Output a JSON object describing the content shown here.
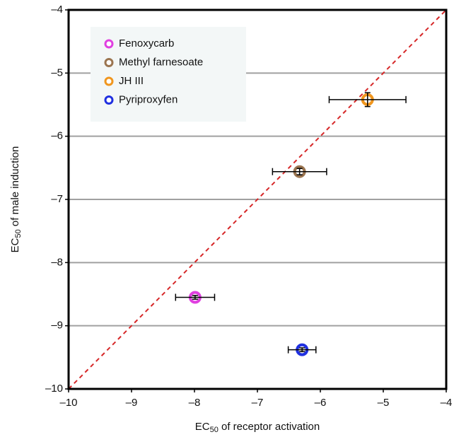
{
  "chart_data": {
    "type": "scatter",
    "xlabel": {
      "main": "EC",
      "sub": "50",
      "rest": " of receptor activation"
    },
    "ylabel": {
      "main": "EC",
      "sub": "50",
      "rest": " of male induction"
    },
    "xlim": [
      -10,
      -4
    ],
    "ylim": [
      -10,
      -4
    ],
    "xticks": [
      {
        "value": -10,
        "label": "–10"
      },
      {
        "value": -9,
        "label": "–9"
      },
      {
        "value": -8,
        "label": "–8"
      },
      {
        "value": -7,
        "label": "–7"
      },
      {
        "value": -6,
        "label": "–6"
      },
      {
        "value": -5,
        "label": "–5"
      },
      {
        "value": -4,
        "label": "–4"
      }
    ],
    "yticks": [
      {
        "value": -10,
        "label": "–10"
      },
      {
        "value": -9,
        "label": "–9"
      },
      {
        "value": -8,
        "label": "–8"
      },
      {
        "value": -7,
        "label": "–7"
      },
      {
        "value": -6,
        "label": "–6"
      },
      {
        "value": -5,
        "label": "–5"
      },
      {
        "value": -4,
        "label": "–4"
      }
    ],
    "grid": true,
    "identity_line": true,
    "identity_line_color": "#d62728",
    "legend": "upper left",
    "series": [
      {
        "name": "Fenoxycarb",
        "color": "#e040e0",
        "x": [
          -7.99
        ],
        "y": [
          -8.55
        ],
        "xerr": [
          0.31
        ],
        "yerr": [
          0.03
        ]
      },
      {
        "name": "Methyl farnesoate",
        "color": "#9b7550",
        "x": [
          -6.33
        ],
        "y": [
          -6.56
        ],
        "xerr": [
          0.43
        ],
        "yerr": [
          0.05
        ]
      },
      {
        "name": "JH III",
        "color": "#f0961e",
        "x": [
          -5.25
        ],
        "y": [
          -5.42
        ],
        "xerr": [
          0.61
        ],
        "yerr": [
          0.11
        ]
      },
      {
        "name": "Pyriproxyfen",
        "color": "#2030e0",
        "x": [
          -6.29
        ],
        "y": [
          -9.38
        ],
        "xerr": [
          0.22
        ],
        "yerr": [
          0.03
        ]
      }
    ]
  }
}
